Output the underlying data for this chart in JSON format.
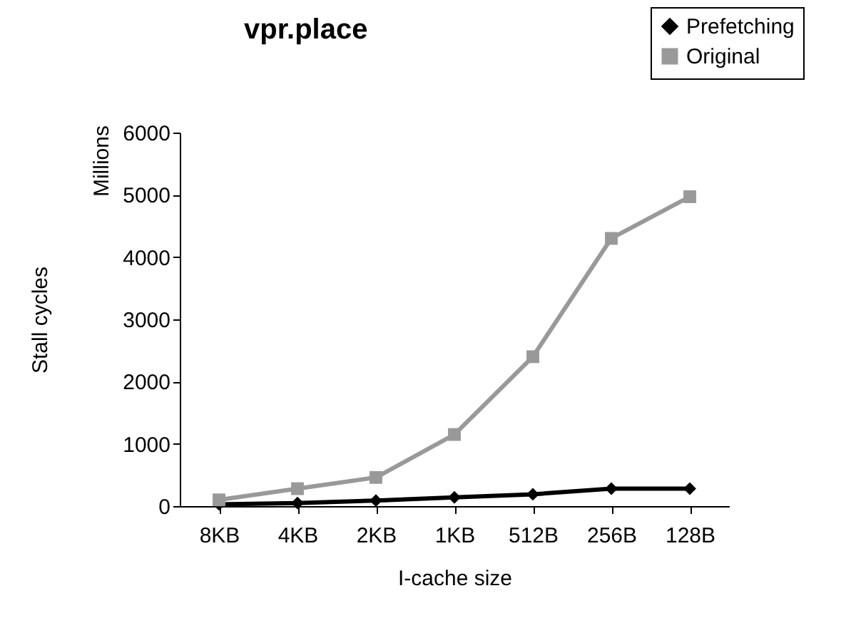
{
  "chart_data": {
    "type": "line",
    "title": "vpr.place",
    "xlabel": "I-cache size",
    "ylabel": "Stall cycles",
    "annotations": [
      "Millions"
    ],
    "categories": [
      "8KB",
      "4KB",
      "2KB",
      "1KB",
      "512B",
      "256B",
      "128B"
    ],
    "series": [
      {
        "name": "Prefetching",
        "color": "#000000",
        "marker": "diamond",
        "values": [
          30,
          50,
          90,
          140,
          190,
          280,
          280
        ]
      },
      {
        "name": "Original",
        "color": "#999999",
        "marker": "square",
        "values": [
          100,
          280,
          460,
          1150,
          2400,
          4300,
          4970
        ]
      }
    ],
    "ylim": [
      0,
      6000
    ],
    "yticks": [
      0,
      1000,
      2000,
      3000,
      4000,
      5000,
      6000
    ],
    "grid": false,
    "legend": "top right",
    "line_style": "solid"
  }
}
